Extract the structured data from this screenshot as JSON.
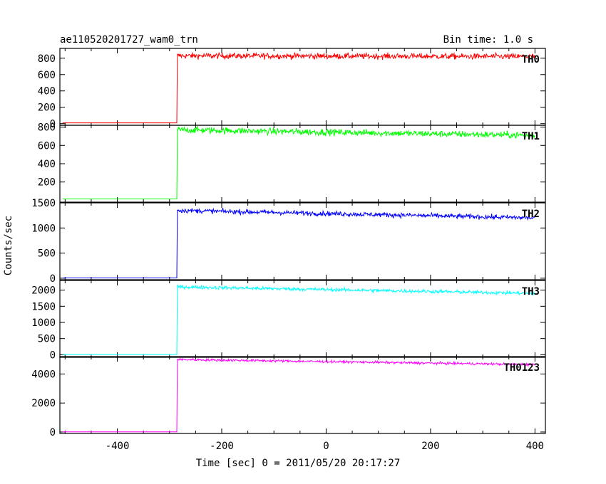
{
  "header": {
    "title": "ae110520201727_wam0_trn",
    "bin_time": "Bin time: 1.0 s"
  },
  "chart_data": {
    "type": "line",
    "xlabel": "Time [sec] 0 = 2011/05/20 20:17:27",
    "ylabel": "Counts/sec",
    "xlim": [
      -510,
      420
    ],
    "x_ticks": [
      -400,
      -200,
      0,
      200,
      400
    ],
    "grid": false,
    "trigger_time": -285,
    "panels": [
      {
        "name": "TH0",
        "color": "#ff0000",
        "ylim": [
          -20,
          920
        ],
        "y_ticks": [
          0,
          200,
          400,
          600,
          800
        ],
        "baseline": 10,
        "start_level": 830,
        "end_level": 820,
        "noise": 30
      },
      {
        "name": "TH1",
        "color": "#00ff00",
        "ylim": [
          -20,
          820
        ],
        "y_ticks": [
          200,
          400,
          600,
          800
        ],
        "baseline": 15,
        "start_level": 770,
        "end_level": 710,
        "noise": 30
      },
      {
        "name": "TH2",
        "color": "#0000ff",
        "ylim": [
          -30,
          1500
        ],
        "y_ticks": [
          0,
          500,
          1000,
          1500
        ],
        "baseline": 5,
        "start_level": 1350,
        "end_level": 1200,
        "noise": 40
      },
      {
        "name": "TH3",
        "color": "#00ffff",
        "ylim": [
          -80,
          2300
        ],
        "y_ticks": [
          0,
          500,
          1000,
          1500,
          2000
        ],
        "baseline": 5,
        "start_level": 2100,
        "end_level": 1900,
        "noise": 45
      },
      {
        "name": "TH0123",
        "color": "#ff00ff",
        "ylim": [
          -100,
          5200
        ],
        "y_ticks": [
          0,
          2000,
          4000
        ],
        "baseline": 10,
        "start_level": 5000,
        "end_level": 4650,
        "noise": 70
      }
    ]
  }
}
